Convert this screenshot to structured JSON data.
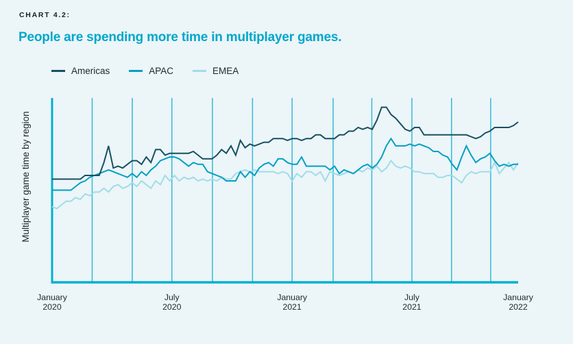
{
  "header": {
    "kicker": "CHART 4.2:",
    "title": "People are spending more time in multiplayer games."
  },
  "colors": {
    "page_background": "#ECF5F8",
    "kicker_text": "#14222A",
    "title_text": "#00A7CB",
    "axis_text": "#1D2930",
    "axis_line": "#00B0D1",
    "gridline": "#33BAD7"
  },
  "chart_data": {
    "type": "line",
    "title": "People are spending more time in multiplayer games.",
    "ylabel": "Multiplayer game time by region",
    "xlabel": "",
    "legend_position": "top-left",
    "grid": "vertical-only",
    "y_axis": {
      "ticks_visible": false,
      "note": "unlabeled axis; values are relative game time, 0-100 of plot height"
    },
    "x_range": [
      "January 2020",
      "January 2022"
    ],
    "sample_interval": "weekly",
    "gridlines_pct": [
      0,
      8.6,
      17.2,
      25.7,
      34.4,
      43.0,
      51.5,
      60.3,
      68.6,
      77.2,
      85.7,
      94.1
    ],
    "x_ticks": [
      {
        "line1": "January",
        "line2": "2020",
        "pct": 0
      },
      {
        "line1": "July",
        "line2": "2020",
        "pct": 25.7
      },
      {
        "line1": "January",
        "line2": "2021",
        "pct": 51.5
      },
      {
        "line1": "July",
        "line2": "2021",
        "pct": 77.2
      },
      {
        "line1": "January",
        "line2": "2022",
        "pct": 100
      }
    ],
    "series": [
      {
        "name": "Americas",
        "color": "#175062",
        "values": [
          56,
          56,
          56,
          56,
          56,
          56,
          56,
          58,
          58,
          58,
          58,
          65,
          74,
          62,
          63,
          62,
          64,
          66,
          66,
          64,
          68,
          65,
          72,
          72,
          69,
          70,
          70,
          70,
          70,
          70,
          71,
          69,
          67,
          67,
          67,
          69,
          72,
          70,
          74,
          69,
          77,
          73,
          75,
          74,
          75,
          76,
          76,
          78,
          78,
          78,
          77,
          78,
          78,
          77,
          78,
          78,
          80,
          80,
          78,
          78,
          78,
          80,
          80,
          82,
          82,
          84,
          83,
          84,
          83,
          88,
          95,
          95,
          91,
          89,
          86,
          83,
          82,
          84,
          84,
          80,
          80,
          80,
          80,
          80,
          80,
          80,
          80,
          80,
          80,
          79,
          78,
          79,
          81,
          82,
          84,
          84,
          84,
          84,
          85,
          87
        ]
      },
      {
        "name": "APAC",
        "color": "#00A0C4",
        "values": [
          50,
          50,
          50,
          50,
          50,
          52,
          54,
          55,
          57,
          58,
          59,
          60,
          61,
          60,
          59,
          58,
          57,
          59,
          57,
          60,
          58,
          61,
          63,
          66,
          67,
          68,
          68,
          67,
          65,
          63,
          65,
          64,
          64,
          60,
          59,
          58,
          57,
          55,
          55,
          55,
          60,
          57,
          60,
          58,
          62,
          64,
          65,
          63,
          67,
          67,
          65,
          64,
          64,
          68,
          63,
          63,
          63,
          63,
          63,
          61,
          63,
          59,
          61,
          60,
          59,
          61,
          63,
          64,
          62,
          64,
          68,
          74,
          78,
          74,
          74,
          74,
          75,
          74,
          75,
          74,
          73,
          71,
          71,
          69,
          68,
          64,
          61,
          68,
          74,
          69,
          65,
          67,
          68,
          70,
          66,
          63,
          64,
          63,
          64,
          64
        ]
      },
      {
        "name": "EMEA",
        "color": "#A0DCE8",
        "values": [
          41,
          40,
          42,
          44,
          44,
          46,
          45,
          48,
          47,
          49,
          49,
          51,
          49,
          52,
          53,
          51,
          52,
          54,
          52,
          55,
          53,
          51,
          55,
          53,
          58,
          55,
          58,
          55,
          57,
          56,
          57,
          55,
          56,
          55,
          56,
          55,
          57,
          56,
          56,
          59,
          60,
          61,
          60,
          61,
          60,
          60,
          60,
          60,
          59,
          60,
          59,
          55,
          59,
          57,
          60,
          60,
          58,
          60,
          55,
          60,
          59,
          58,
          59,
          60,
          59,
          61,
          60,
          62,
          61,
          63,
          60,
          62,
          66,
          63,
          62,
          63,
          62,
          60,
          60,
          59,
          59,
          59,
          57,
          57,
          58,
          58,
          56,
          54,
          58,
          60,
          59,
          60,
          60,
          60,
          65,
          59,
          62,
          65,
          61,
          65
        ]
      }
    ]
  }
}
